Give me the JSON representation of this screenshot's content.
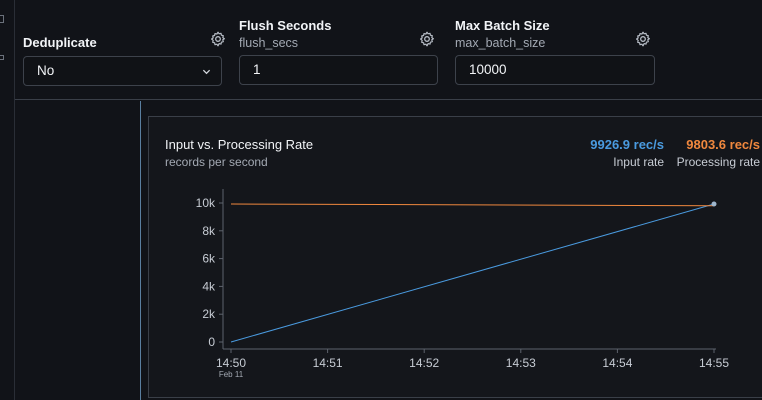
{
  "config": {
    "deduplicate": {
      "label": "Deduplicate",
      "value": "No",
      "gear_icon": "gear-icon"
    },
    "flush_seconds": {
      "label": "Flush Seconds",
      "sublabel": "flush_secs",
      "value": "1"
    },
    "max_batch_size": {
      "label": "Max Batch Size",
      "sublabel": "max_batch_size",
      "value": "10000"
    }
  },
  "card": {
    "title": "Input vs. Processing Rate",
    "subtitle": "records per second",
    "stats": [
      {
        "value": "9926.9 rec/s",
        "label": "Input rate",
        "color": "#4a9be0"
      },
      {
        "value": "9803.6 rec/s",
        "label": "Processing rate",
        "color": "#f0883e"
      }
    ]
  },
  "chart_data": {
    "type": "line",
    "x_tick_labels": [
      "14:50",
      "14:51",
      "14:52",
      "14:53",
      "14:54",
      "14:55"
    ],
    "x_date_label": "Feb 11",
    "y_tick_labels": [
      "0",
      "2k",
      "4k",
      "6k",
      "8k",
      "10k"
    ],
    "y_ticks": [
      0,
      2000,
      4000,
      6000,
      8000,
      10000
    ],
    "ylim": [
      0,
      10000
    ],
    "xlim": [
      "14:50",
      "14:55"
    ],
    "grid": false,
    "series": [
      {
        "color": "#4a9be0",
        "x": [
          "14:50",
          "14:55"
        ],
        "values": [
          0,
          9926.9
        ]
      },
      {
        "color": "#f0883e",
        "x": [
          "14:50",
          "14:55"
        ],
        "values": [
          9926.9,
          9803.6
        ]
      }
    ]
  }
}
